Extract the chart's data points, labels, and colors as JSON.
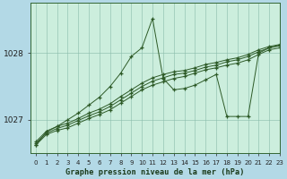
{
  "xlabel": "Graphe pression niveau de la mer (hPa)",
  "xlim": [
    -0.5,
    23
  ],
  "ylim": [
    1026.5,
    1028.75
  ],
  "yticks": [
    1027,
    1028
  ],
  "xticks": [
    0,
    1,
    2,
    3,
    4,
    5,
    6,
    7,
    8,
    9,
    10,
    11,
    12,
    13,
    14,
    15,
    16,
    17,
    18,
    19,
    20,
    21,
    22,
    23
  ],
  "fig_bg": "#b3d9e6",
  "plot_bg": "#cceedd",
  "line_color": "#2d5a27",
  "lines": [
    {
      "x": [
        0,
        1,
        2,
        3,
        4,
        5,
        6,
        7,
        8,
        9,
        10,
        11,
        12,
        13,
        14,
        15,
        16,
        17,
        18,
        19,
        20,
        21,
        22,
        23
      ],
      "y": [
        1026.62,
        1026.78,
        1026.84,
        1026.88,
        1026.95,
        1027.02,
        1027.08,
        1027.15,
        1027.25,
        1027.35,
        1027.45,
        1027.52,
        1027.57,
        1027.62,
        1027.65,
        1027.7,
        1027.75,
        1027.78,
        1027.82,
        1027.85,
        1027.9,
        1027.98,
        1028.05,
        1028.08
      ]
    },
    {
      "x": [
        0,
        1,
        2,
        3,
        4,
        5,
        6,
        7,
        8,
        9,
        10,
        11,
        12,
        13,
        14,
        15,
        16,
        17,
        18,
        19,
        20,
        21,
        22,
        23
      ],
      "y": [
        1026.65,
        1026.8,
        1026.87,
        1026.92,
        1026.99,
        1027.06,
        1027.12,
        1027.2,
        1027.3,
        1027.4,
        1027.5,
        1027.58,
        1027.63,
        1027.68,
        1027.7,
        1027.74,
        1027.79,
        1027.82,
        1027.87,
        1027.9,
        1027.95,
        1028.02,
        1028.08,
        1028.11
      ]
    },
    {
      "x": [
        0,
        1,
        2,
        3,
        4,
        5,
        6,
        7,
        8,
        9,
        10,
        11,
        12,
        13,
        14,
        15,
        16,
        17,
        18,
        19,
        20,
        21,
        22,
        23
      ],
      "y": [
        1026.67,
        1026.83,
        1026.9,
        1026.95,
        1027.02,
        1027.1,
        1027.16,
        1027.24,
        1027.35,
        1027.45,
        1027.55,
        1027.63,
        1027.68,
        1027.72,
        1027.74,
        1027.78,
        1027.83,
        1027.86,
        1027.9,
        1027.93,
        1027.98,
        1028.05,
        1028.1,
        1028.13
      ]
    },
    {
      "x": [
        0,
        1,
        2,
        3,
        4,
        5,
        6,
        7,
        8,
        9,
        10,
        11,
        12,
        13,
        14,
        15,
        16,
        17,
        18,
        19,
        20,
        21,
        22,
        23
      ],
      "y": [
        1026.62,
        1026.82,
        1026.9,
        1027.0,
        1027.1,
        1027.22,
        1027.34,
        1027.5,
        1027.7,
        1027.95,
        1028.08,
        1028.52,
        1027.62,
        1027.45,
        1027.47,
        1027.52,
        1027.6,
        1027.68,
        1027.05,
        1027.05,
        1027.05,
        1028.0,
        1028.08,
        1028.12
      ]
    }
  ]
}
